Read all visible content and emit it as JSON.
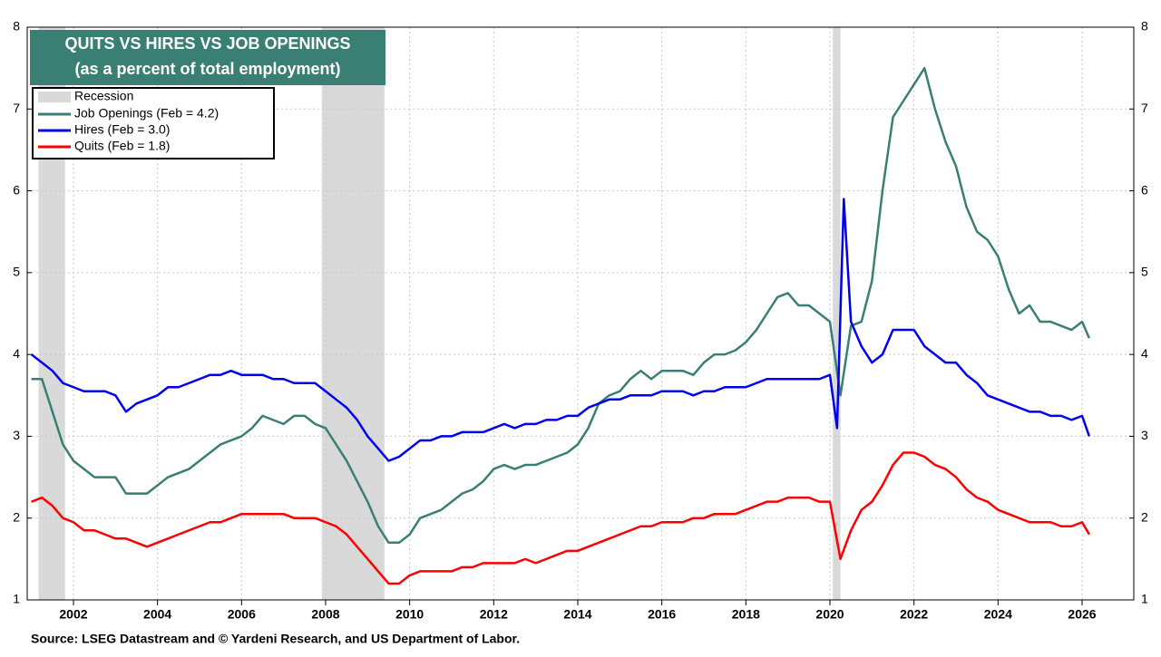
{
  "chart_data": {
    "type": "line",
    "title": "QUITS VS HIRES VS JOB OPENINGS",
    "subtitle": "(as a percent of total employment)",
    "source": "Source: LSEG Datastream and © Yardeni Research, and US Department of Labor.",
    "xlim": [
      2000.9,
      2027.23
    ],
    "xticks": [
      2002,
      2004,
      2006,
      2008,
      2010,
      2012,
      2014,
      2016,
      2018,
      2020,
      2022,
      2024,
      2026
    ],
    "ylim": [
      1,
      8
    ],
    "yticks": [
      1,
      2,
      3,
      4,
      5,
      6,
      7,
      8
    ],
    "y2lim": [
      1,
      8
    ],
    "y2ticks": [
      1,
      2,
      3,
      4,
      5,
      6,
      7,
      8
    ],
    "grid": true,
    "recessions": {
      "name": "Recession",
      "color": "#d9d9d9",
      "ranges": [
        [
          2001.17,
          2001.8
        ],
        [
          2007.91,
          2009.4
        ],
        [
          2020.07,
          2020.25
        ]
      ]
    },
    "series": [
      {
        "name": "Job Openings (Feb = 4.2)",
        "color": "#3a7f73",
        "x": [
          2001,
          2001.25,
          2001.5,
          2001.75,
          2002,
          2002.25,
          2002.5,
          2002.75,
          2003,
          2003.25,
          2003.5,
          2003.75,
          2004,
          2004.25,
          2004.5,
          2004.75,
          2005,
          2005.25,
          2005.5,
          2005.75,
          2006,
          2006.25,
          2006.5,
          2006.75,
          2007,
          2007.25,
          2007.5,
          2007.75,
          2008,
          2008.25,
          2008.5,
          2008.75,
          2009,
          2009.25,
          2009.5,
          2009.75,
          2010,
          2010.25,
          2010.5,
          2010.75,
          2011,
          2011.25,
          2011.5,
          2011.75,
          2012,
          2012.25,
          2012.5,
          2012.75,
          2013,
          2013.25,
          2013.5,
          2013.75,
          2014,
          2014.25,
          2014.5,
          2014.75,
          2015,
          2015.25,
          2015.5,
          2015.75,
          2016,
          2016.25,
          2016.5,
          2016.75,
          2017,
          2017.25,
          2017.5,
          2017.75,
          2018,
          2018.25,
          2018.5,
          2018.75,
          2019,
          2019.25,
          2019.5,
          2019.75,
          2020,
          2020.25,
          2020.5,
          2020.75,
          2021,
          2021.25,
          2021.5,
          2021.75,
          2022,
          2022.25,
          2022.5,
          2022.75,
          2023,
          2023.25,
          2023.5,
          2023.75,
          2024,
          2024.25,
          2024.5,
          2024.75,
          2025,
          2025.25,
          2025.5,
          2025.75,
          2026,
          2026.17
        ],
        "values": [
          3.7,
          3.7,
          3.3,
          2.9,
          2.7,
          2.6,
          2.5,
          2.5,
          2.5,
          2.3,
          2.3,
          2.3,
          2.4,
          2.5,
          2.55,
          2.6,
          2.7,
          2.8,
          2.9,
          2.95,
          3.0,
          3.1,
          3.25,
          3.2,
          3.15,
          3.25,
          3.25,
          3.15,
          3.1,
          2.9,
          2.7,
          2.45,
          2.2,
          1.9,
          1.7,
          1.7,
          1.8,
          2.0,
          2.05,
          2.1,
          2.2,
          2.3,
          2.35,
          2.45,
          2.6,
          2.65,
          2.6,
          2.65,
          2.65,
          2.7,
          2.75,
          2.8,
          2.9,
          3.1,
          3.4,
          3.5,
          3.55,
          3.7,
          3.8,
          3.7,
          3.8,
          3.8,
          3.8,
          3.75,
          3.9,
          4.0,
          4.0,
          4.05,
          4.15,
          4.3,
          4.5,
          4.7,
          4.75,
          4.6,
          4.6,
          4.5,
          4.4,
          3.5,
          4.35,
          4.4,
          4.9,
          6.0,
          6.9,
          7.1,
          7.3,
          7.5,
          7.0,
          6.6,
          6.3,
          5.8,
          5.5,
          5.4,
          5.2,
          4.8,
          4.5,
          4.6,
          4.4,
          4.4,
          4.35,
          4.3,
          4.4,
          4.2
        ]
      },
      {
        "name": "Hires (Feb = 3.0)",
        "color": "#0000ee",
        "x": [
          2001,
          2001.25,
          2001.5,
          2001.75,
          2002,
          2002.25,
          2002.5,
          2002.75,
          2003,
          2003.25,
          2003.5,
          2003.75,
          2004,
          2004.25,
          2004.5,
          2004.75,
          2005,
          2005.25,
          2005.5,
          2005.75,
          2006,
          2006.25,
          2006.5,
          2006.75,
          2007,
          2007.25,
          2007.5,
          2007.75,
          2008,
          2008.25,
          2008.5,
          2008.75,
          2009,
          2009.25,
          2009.5,
          2009.75,
          2010,
          2010.25,
          2010.5,
          2010.75,
          2011,
          2011.25,
          2011.5,
          2011.75,
          2012,
          2012.25,
          2012.5,
          2012.75,
          2013,
          2013.25,
          2013.5,
          2013.75,
          2014,
          2014.25,
          2014.5,
          2014.75,
          2015,
          2015.25,
          2015.5,
          2015.75,
          2016,
          2016.25,
          2016.5,
          2016.75,
          2017,
          2017.25,
          2017.5,
          2017.75,
          2018,
          2018.25,
          2018.5,
          2018.75,
          2019,
          2019.25,
          2019.5,
          2019.75,
          2020,
          2020.17,
          2020.33,
          2020.5,
          2020.75,
          2021,
          2021.25,
          2021.5,
          2021.75,
          2022,
          2022.25,
          2022.5,
          2022.75,
          2023,
          2023.25,
          2023.5,
          2023.75,
          2024,
          2024.25,
          2024.5,
          2024.75,
          2025,
          2025.25,
          2025.5,
          2025.75,
          2026,
          2026.17
        ],
        "values": [
          4.0,
          3.9,
          3.8,
          3.65,
          3.6,
          3.55,
          3.55,
          3.55,
          3.5,
          3.3,
          3.4,
          3.45,
          3.5,
          3.6,
          3.6,
          3.65,
          3.7,
          3.75,
          3.75,
          3.8,
          3.75,
          3.75,
          3.75,
          3.7,
          3.7,
          3.65,
          3.65,
          3.65,
          3.55,
          3.45,
          3.35,
          3.2,
          3.0,
          2.85,
          2.7,
          2.75,
          2.85,
          2.95,
          2.95,
          3.0,
          3.0,
          3.05,
          3.05,
          3.05,
          3.1,
          3.15,
          3.1,
          3.15,
          3.15,
          3.2,
          3.2,
          3.25,
          3.25,
          3.35,
          3.4,
          3.45,
          3.45,
          3.5,
          3.5,
          3.5,
          3.55,
          3.55,
          3.55,
          3.5,
          3.55,
          3.55,
          3.6,
          3.6,
          3.6,
          3.65,
          3.7,
          3.7,
          3.7,
          3.7,
          3.7,
          3.7,
          3.75,
          3.1,
          5.9,
          4.4,
          4.1,
          3.9,
          4.0,
          4.3,
          4.3,
          4.3,
          4.1,
          4.0,
          3.9,
          3.9,
          3.75,
          3.65,
          3.5,
          3.45,
          3.4,
          3.35,
          3.3,
          3.3,
          3.25,
          3.25,
          3.2,
          3.25,
          3.0
        ]
      },
      {
        "name": "Quits (Feb = 1.8)",
        "color": "#ff0000",
        "x": [
          2001,
          2001.25,
          2001.5,
          2001.75,
          2002,
          2002.25,
          2002.5,
          2002.75,
          2003,
          2003.25,
          2003.5,
          2003.75,
          2004,
          2004.25,
          2004.5,
          2004.75,
          2005,
          2005.25,
          2005.5,
          2005.75,
          2006,
          2006.25,
          2006.5,
          2006.75,
          2007,
          2007.25,
          2007.5,
          2007.75,
          2008,
          2008.25,
          2008.5,
          2008.75,
          2009,
          2009.25,
          2009.5,
          2009.75,
          2010,
          2010.25,
          2010.5,
          2010.75,
          2011,
          2011.25,
          2011.5,
          2011.75,
          2012,
          2012.25,
          2012.5,
          2012.75,
          2013,
          2013.25,
          2013.5,
          2013.75,
          2014,
          2014.25,
          2014.5,
          2014.75,
          2015,
          2015.25,
          2015.5,
          2015.75,
          2016,
          2016.25,
          2016.5,
          2016.75,
          2017,
          2017.25,
          2017.5,
          2017.75,
          2018,
          2018.25,
          2018.5,
          2018.75,
          2019,
          2019.25,
          2019.5,
          2019.75,
          2020,
          2020.25,
          2020.5,
          2020.75,
          2021,
          2021.25,
          2021.5,
          2021.75,
          2022,
          2022.25,
          2022.5,
          2022.75,
          2023,
          2023.25,
          2023.5,
          2023.75,
          2024,
          2024.25,
          2024.5,
          2024.75,
          2025,
          2025.25,
          2025.5,
          2025.75,
          2026,
          2026.17
        ],
        "values": [
          2.2,
          2.25,
          2.15,
          2.0,
          1.95,
          1.85,
          1.85,
          1.8,
          1.75,
          1.75,
          1.7,
          1.65,
          1.7,
          1.75,
          1.8,
          1.85,
          1.9,
          1.95,
          1.95,
          2.0,
          2.05,
          2.05,
          2.05,
          2.05,
          2.05,
          2.0,
          2.0,
          2.0,
          1.95,
          1.9,
          1.8,
          1.65,
          1.5,
          1.35,
          1.2,
          1.2,
          1.3,
          1.35,
          1.35,
          1.35,
          1.35,
          1.4,
          1.4,
          1.45,
          1.45,
          1.45,
          1.45,
          1.5,
          1.45,
          1.5,
          1.55,
          1.6,
          1.6,
          1.65,
          1.7,
          1.75,
          1.8,
          1.85,
          1.9,
          1.9,
          1.95,
          1.95,
          1.95,
          2.0,
          2.0,
          2.05,
          2.05,
          2.05,
          2.1,
          2.15,
          2.2,
          2.2,
          2.25,
          2.25,
          2.25,
          2.2,
          2.2,
          1.5,
          1.85,
          2.1,
          2.2,
          2.4,
          2.65,
          2.8,
          2.8,
          2.75,
          2.65,
          2.6,
          2.5,
          2.35,
          2.25,
          2.2,
          2.1,
          2.05,
          2.0,
          1.95,
          1.95,
          1.95,
          1.9,
          1.9,
          1.95,
          1.8
        ]
      }
    ]
  }
}
